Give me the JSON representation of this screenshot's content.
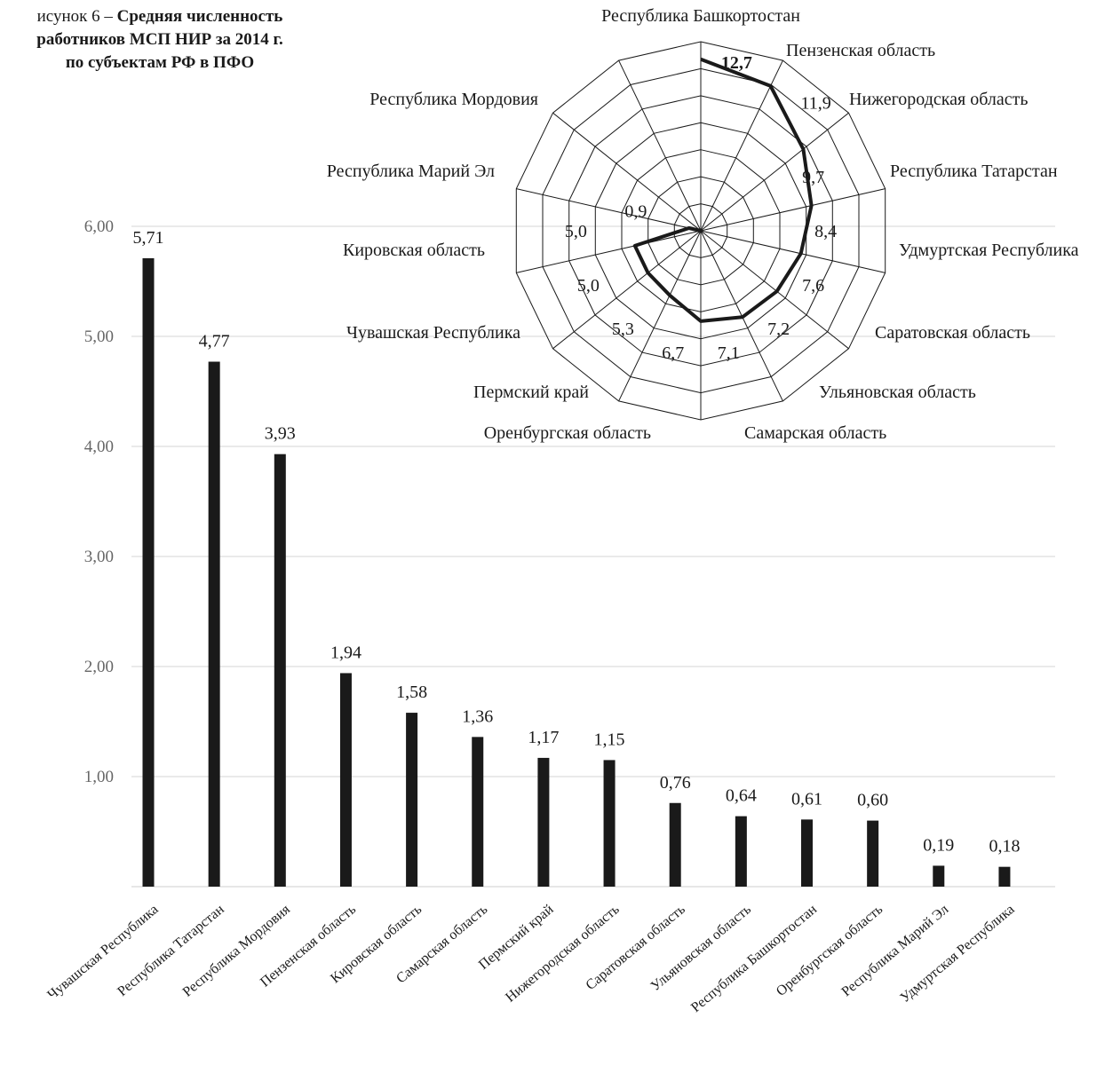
{
  "caption": {
    "prefix": "исунок 6 – ",
    "line1": "Средняя численность",
    "line2": "работников МСП НИР за 2014 г.",
    "line3": "по субъектам РФ в ПФО"
  },
  "chart_data": [
    {
      "type": "bar",
      "title": "",
      "xlabel": "",
      "ylabel": "",
      "ylim": [
        0,
        6
      ],
      "yticks": [
        "1,00",
        "2,00",
        "3,00",
        "4,00",
        "5,00",
        "6,00"
      ],
      "grid": true,
      "bar_color": "#1a1a1a",
      "categories": [
        "Чувашская Республика",
        "Республика Татарстан",
        "Республика Мордовия",
        "Пензенская область",
        "Кировская область",
        "Самарская область",
        "Пермский край",
        "Нижегородская область",
        "Саратовская область",
        "Ульяновская область",
        "Республика Башкортостан",
        "Оренбургская область",
        "Республика Марий Эл",
        "Удмуртская Республика"
      ],
      "values": [
        5.71,
        4.77,
        3.93,
        1.94,
        1.58,
        1.36,
        1.17,
        1.15,
        0.76,
        0.64,
        0.61,
        0.6,
        0.19,
        0.18
      ],
      "value_labels": [
        "5,71",
        "4,77",
        "3,93",
        "1,94",
        "1,58",
        "1,36",
        "1,17",
        "1,15",
        "0,76",
        "0,64",
        "0,61",
        "0,60",
        "0,19",
        "0,18"
      ]
    },
    {
      "type": "radar",
      "title": "",
      "rmax": 14,
      "rings": 7,
      "line_color": "#1a1a1a",
      "categories": [
        "Республика Башкортостан",
        "Пензенская область",
        "Нижегородская область",
        "Республика Татарстан",
        "Удмуртская Республика",
        "Саратовская область",
        "Ульяновская область",
        "Самарская область",
        "Оренбургская область",
        "Пермский край",
        "Чувашская Республика",
        "Кировская область",
        "Республика Марий Эл",
        "Республика Мордовия"
      ],
      "values": [
        12.7,
        11.9,
        9.7,
        8.4,
        7.6,
        7.2,
        7.1,
        6.7,
        5.3,
        5.0,
        5.0,
        0.9,
        null,
        null
      ],
      "value_labels": [
        "12,7",
        "11,9",
        "9,7",
        "8,4",
        "7,6",
        "7,2",
        "7,1",
        "6,7",
        "5,3",
        "5,0",
        "5,0",
        "0,9",
        "",
        ""
      ]
    }
  ]
}
